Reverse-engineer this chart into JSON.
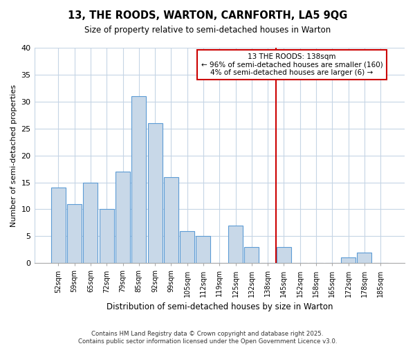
{
  "title": "13, THE ROODS, WARTON, CARNFORTH, LA5 9QG",
  "subtitle": "Size of property relative to semi-detached houses in Warton",
  "xlabel": "Distribution of semi-detached houses by size in Warton",
  "ylabel": "Number of semi-detached properties",
  "categories": [
    "52sqm",
    "59sqm",
    "65sqm",
    "72sqm",
    "79sqm",
    "85sqm",
    "92sqm",
    "99sqm",
    "105sqm",
    "112sqm",
    "119sqm",
    "125sqm",
    "132sqm",
    "138sqm",
    "145sqm",
    "152sqm",
    "158sqm",
    "165sqm",
    "172sqm",
    "178sqm",
    "185sqm"
  ],
  "values": [
    14,
    11,
    15,
    10,
    17,
    31,
    26,
    16,
    6,
    5,
    0,
    7,
    3,
    0,
    3,
    0,
    0,
    0,
    1,
    2,
    0
  ],
  "bar_color": "#c8d8e8",
  "bar_edge_color": "#5b9bd5",
  "highlight_line_color": "#cc0000",
  "annotation_title": "13 THE ROODS: 138sqm",
  "annotation_line1": "← 96% of semi-detached houses are smaller (160)",
  "annotation_line2": "4% of semi-detached houses are larger (6) →",
  "annotation_box_color": "white",
  "annotation_box_edge_color": "#cc0000",
  "ylim": [
    0,
    40
  ],
  "yticks": [
    0,
    5,
    10,
    15,
    20,
    25,
    30,
    35,
    40
  ],
  "footer_line1": "Contains HM Land Registry data © Crown copyright and database right 2025.",
  "footer_line2": "Contains public sector information licensed under the Open Government Licence v3.0.",
  "background_color": "#ffffff",
  "grid_color": "#c5d5e5"
}
